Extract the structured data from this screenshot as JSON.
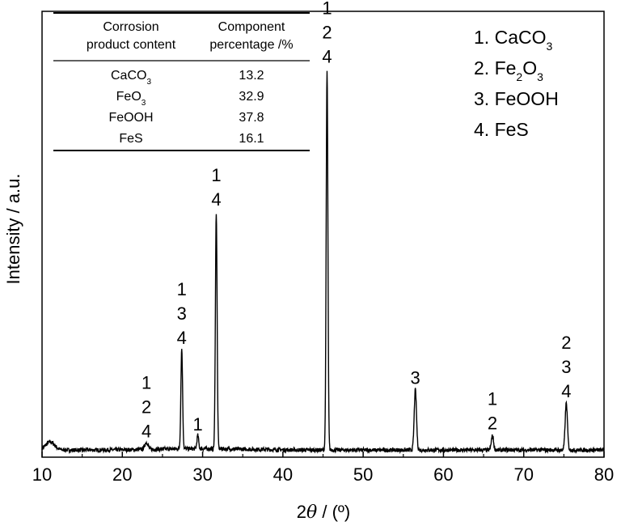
{
  "chart_data": {
    "type": "line",
    "xlabel_symbol": "θ",
    "xlabel_prefix": "2",
    "xlabel_suffix": " / (º)",
    "ylabel": "Intensity / a.u.",
    "xlim": [
      10,
      80
    ],
    "ylim": [
      0,
      100
    ],
    "grid": false,
    "legend_position": "top-right",
    "xticks": [
      "10",
      "20",
      "30",
      "40",
      "50",
      "60",
      "70",
      "80"
    ],
    "peaks": [
      {
        "x": 11.0,
        "y": 1.8,
        "w": 0.8
      },
      {
        "x": 23.0,
        "y": 1.6,
        "w": 0.3
      },
      {
        "x": 27.4,
        "y": 22.5,
        "w": 0.15
      },
      {
        "x": 29.4,
        "y": 3.0,
        "w": 0.15
      },
      {
        "x": 31.7,
        "y": 53.0,
        "w": 0.15
      },
      {
        "x": 45.5,
        "y": 85.0,
        "w": 0.15
      },
      {
        "x": 56.5,
        "y": 13.5,
        "w": 0.2
      },
      {
        "x": 66.1,
        "y": 3.2,
        "w": 0.2
      },
      {
        "x": 75.3,
        "y": 10.5,
        "w": 0.2
      }
    ],
    "peak_labels": [
      {
        "x": 23.0,
        "y": 3.0,
        "lines": [
          "1",
          "2",
          "4"
        ]
      },
      {
        "x": 27.4,
        "y": 24.0,
        "lines": [
          "1",
          "3",
          "4"
        ]
      },
      {
        "x": 29.4,
        "y": 4.5,
        "lines": [
          "1"
        ]
      },
      {
        "x": 31.7,
        "y": 55.0,
        "lines": [
          "1",
          "4"
        ]
      },
      {
        "x": 45.5,
        "y": 87.0,
        "lines": [
          "1",
          "2",
          "4"
        ]
      },
      {
        "x": 56.5,
        "y": 15.0,
        "lines": [
          "3"
        ]
      },
      {
        "x": 66.1,
        "y": 4.8,
        "lines": [
          "1",
          "2"
        ]
      },
      {
        "x": 75.3,
        "y": 12.0,
        "lines": [
          "2",
          "3",
          "4"
        ]
      }
    ],
    "legend": [
      {
        "num": "1. ",
        "parts": [
          [
            "CaCO",
            ""
          ],
          [
            "3",
            "sub"
          ]
        ]
      },
      {
        "num": "2. ",
        "parts": [
          [
            "Fe",
            ""
          ],
          [
            "2",
            "sub"
          ],
          [
            "O",
            ""
          ],
          [
            "3",
            "sub"
          ]
        ]
      },
      {
        "num": "3. ",
        "parts": [
          [
            "FeOOH",
            ""
          ]
        ]
      },
      {
        "num": "4. ",
        "parts": [
          [
            "FeS",
            ""
          ]
        ]
      }
    ],
    "table": {
      "headers": [
        [
          "Corrosion",
          "product content"
        ],
        [
          "Component",
          "percentage  /%"
        ]
      ],
      "rows": [
        {
          "name": [
            [
              "CaCO",
              ""
            ],
            [
              "3",
              "sub"
            ]
          ],
          "value": "13.2"
        },
        {
          "name": [
            [
              "FeO",
              ""
            ],
            [
              "3",
              "sub"
            ]
          ],
          "value": "32.9"
        },
        {
          "name": [
            [
              "FeOOH",
              ""
            ]
          ],
          "value": "37.8"
        },
        {
          "name": [
            [
              "FeS",
              ""
            ]
          ],
          "value": "16.1"
        }
      ]
    }
  }
}
